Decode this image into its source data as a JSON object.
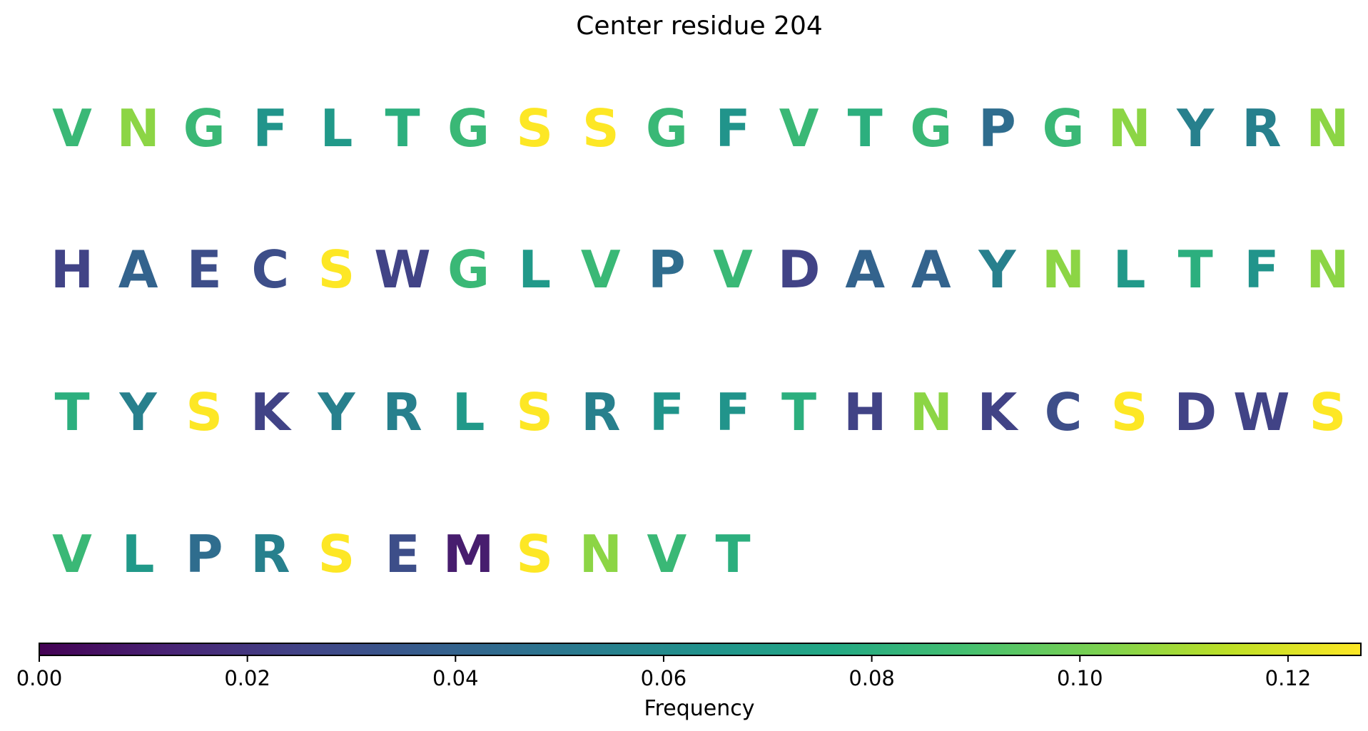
{
  "chart_data": {
    "type": "sequence-frequency",
    "title": "Center residue 204",
    "colormap": "viridis",
    "colorbar": {
      "label": "Frequency",
      "range": [
        0,
        0.127
      ],
      "ticks": [
        "0.00",
        "0.02",
        "0.04",
        "0.06",
        "0.08",
        "0.10",
        "0.12"
      ],
      "tick_values": [
        0,
        0.02,
        0.04,
        0.06,
        0.08,
        0.1,
        0.12
      ]
    },
    "residues": [
      {
        "letter": "V",
        "frequency": 0.085
      },
      {
        "letter": "N",
        "frequency": 0.105
      },
      {
        "letter": "G",
        "frequency": 0.085
      },
      {
        "letter": "F",
        "frequency": 0.065
      },
      {
        "letter": "L",
        "frequency": 0.068
      },
      {
        "letter": "T",
        "frequency": 0.08
      },
      {
        "letter": "G",
        "frequency": 0.085
      },
      {
        "letter": "S",
        "frequency": 0.127
      },
      {
        "letter": "S",
        "frequency": 0.127
      },
      {
        "letter": "G",
        "frequency": 0.085
      },
      {
        "letter": "F",
        "frequency": 0.065
      },
      {
        "letter": "V",
        "frequency": 0.085
      },
      {
        "letter": "T",
        "frequency": 0.08
      },
      {
        "letter": "G",
        "frequency": 0.085
      },
      {
        "letter": "P",
        "frequency": 0.045
      },
      {
        "letter": "G",
        "frequency": 0.085
      },
      {
        "letter": "N",
        "frequency": 0.105
      },
      {
        "letter": "Y",
        "frequency": 0.055
      },
      {
        "letter": "R",
        "frequency": 0.055
      },
      {
        "letter": "N",
        "frequency": 0.105
      },
      {
        "letter": "H",
        "frequency": 0.025
      },
      {
        "letter": "A",
        "frequency": 0.04
      },
      {
        "letter": "E",
        "frequency": 0.03
      },
      {
        "letter": "C",
        "frequency": 0.03
      },
      {
        "letter": "S",
        "frequency": 0.127
      },
      {
        "letter": "W",
        "frequency": 0.025
      },
      {
        "letter": "G",
        "frequency": 0.085
      },
      {
        "letter": "L",
        "frequency": 0.068
      },
      {
        "letter": "V",
        "frequency": 0.085
      },
      {
        "letter": "P",
        "frequency": 0.045
      },
      {
        "letter": "V",
        "frequency": 0.085
      },
      {
        "letter": "D",
        "frequency": 0.025
      },
      {
        "letter": "A",
        "frequency": 0.04
      },
      {
        "letter": "A",
        "frequency": 0.04
      },
      {
        "letter": "Y",
        "frequency": 0.055
      },
      {
        "letter": "N",
        "frequency": 0.105
      },
      {
        "letter": "L",
        "frequency": 0.068
      },
      {
        "letter": "T",
        "frequency": 0.08
      },
      {
        "letter": "F",
        "frequency": 0.065
      },
      {
        "letter": "N",
        "frequency": 0.105
      },
      {
        "letter": "T",
        "frequency": 0.08
      },
      {
        "letter": "Y",
        "frequency": 0.055
      },
      {
        "letter": "S",
        "frequency": 0.127
      },
      {
        "letter": "K",
        "frequency": 0.025
      },
      {
        "letter": "Y",
        "frequency": 0.055
      },
      {
        "letter": "R",
        "frequency": 0.055
      },
      {
        "letter": "L",
        "frequency": 0.068
      },
      {
        "letter": "S",
        "frequency": 0.127
      },
      {
        "letter": "R",
        "frequency": 0.055
      },
      {
        "letter": "F",
        "frequency": 0.065
      },
      {
        "letter": "F",
        "frequency": 0.065
      },
      {
        "letter": "T",
        "frequency": 0.08
      },
      {
        "letter": "H",
        "frequency": 0.025
      },
      {
        "letter": "N",
        "frequency": 0.105
      },
      {
        "letter": "K",
        "frequency": 0.025
      },
      {
        "letter": "C",
        "frequency": 0.03
      },
      {
        "letter": "S",
        "frequency": 0.127
      },
      {
        "letter": "D",
        "frequency": 0.025
      },
      {
        "letter": "W",
        "frequency": 0.025
      },
      {
        "letter": "S",
        "frequency": 0.127
      },
      {
        "letter": "V",
        "frequency": 0.085
      },
      {
        "letter": "L",
        "frequency": 0.068
      },
      {
        "letter": "P",
        "frequency": 0.045
      },
      {
        "letter": "R",
        "frequency": 0.055
      },
      {
        "letter": "S",
        "frequency": 0.127
      },
      {
        "letter": "E",
        "frequency": 0.03
      },
      {
        "letter": "M",
        "frequency": 0.01
      },
      {
        "letter": "S",
        "frequency": 0.127
      },
      {
        "letter": "N",
        "frequency": 0.105
      },
      {
        "letter": "V",
        "frequency": 0.085
      },
      {
        "letter": "T",
        "frequency": 0.08
      }
    ]
  }
}
